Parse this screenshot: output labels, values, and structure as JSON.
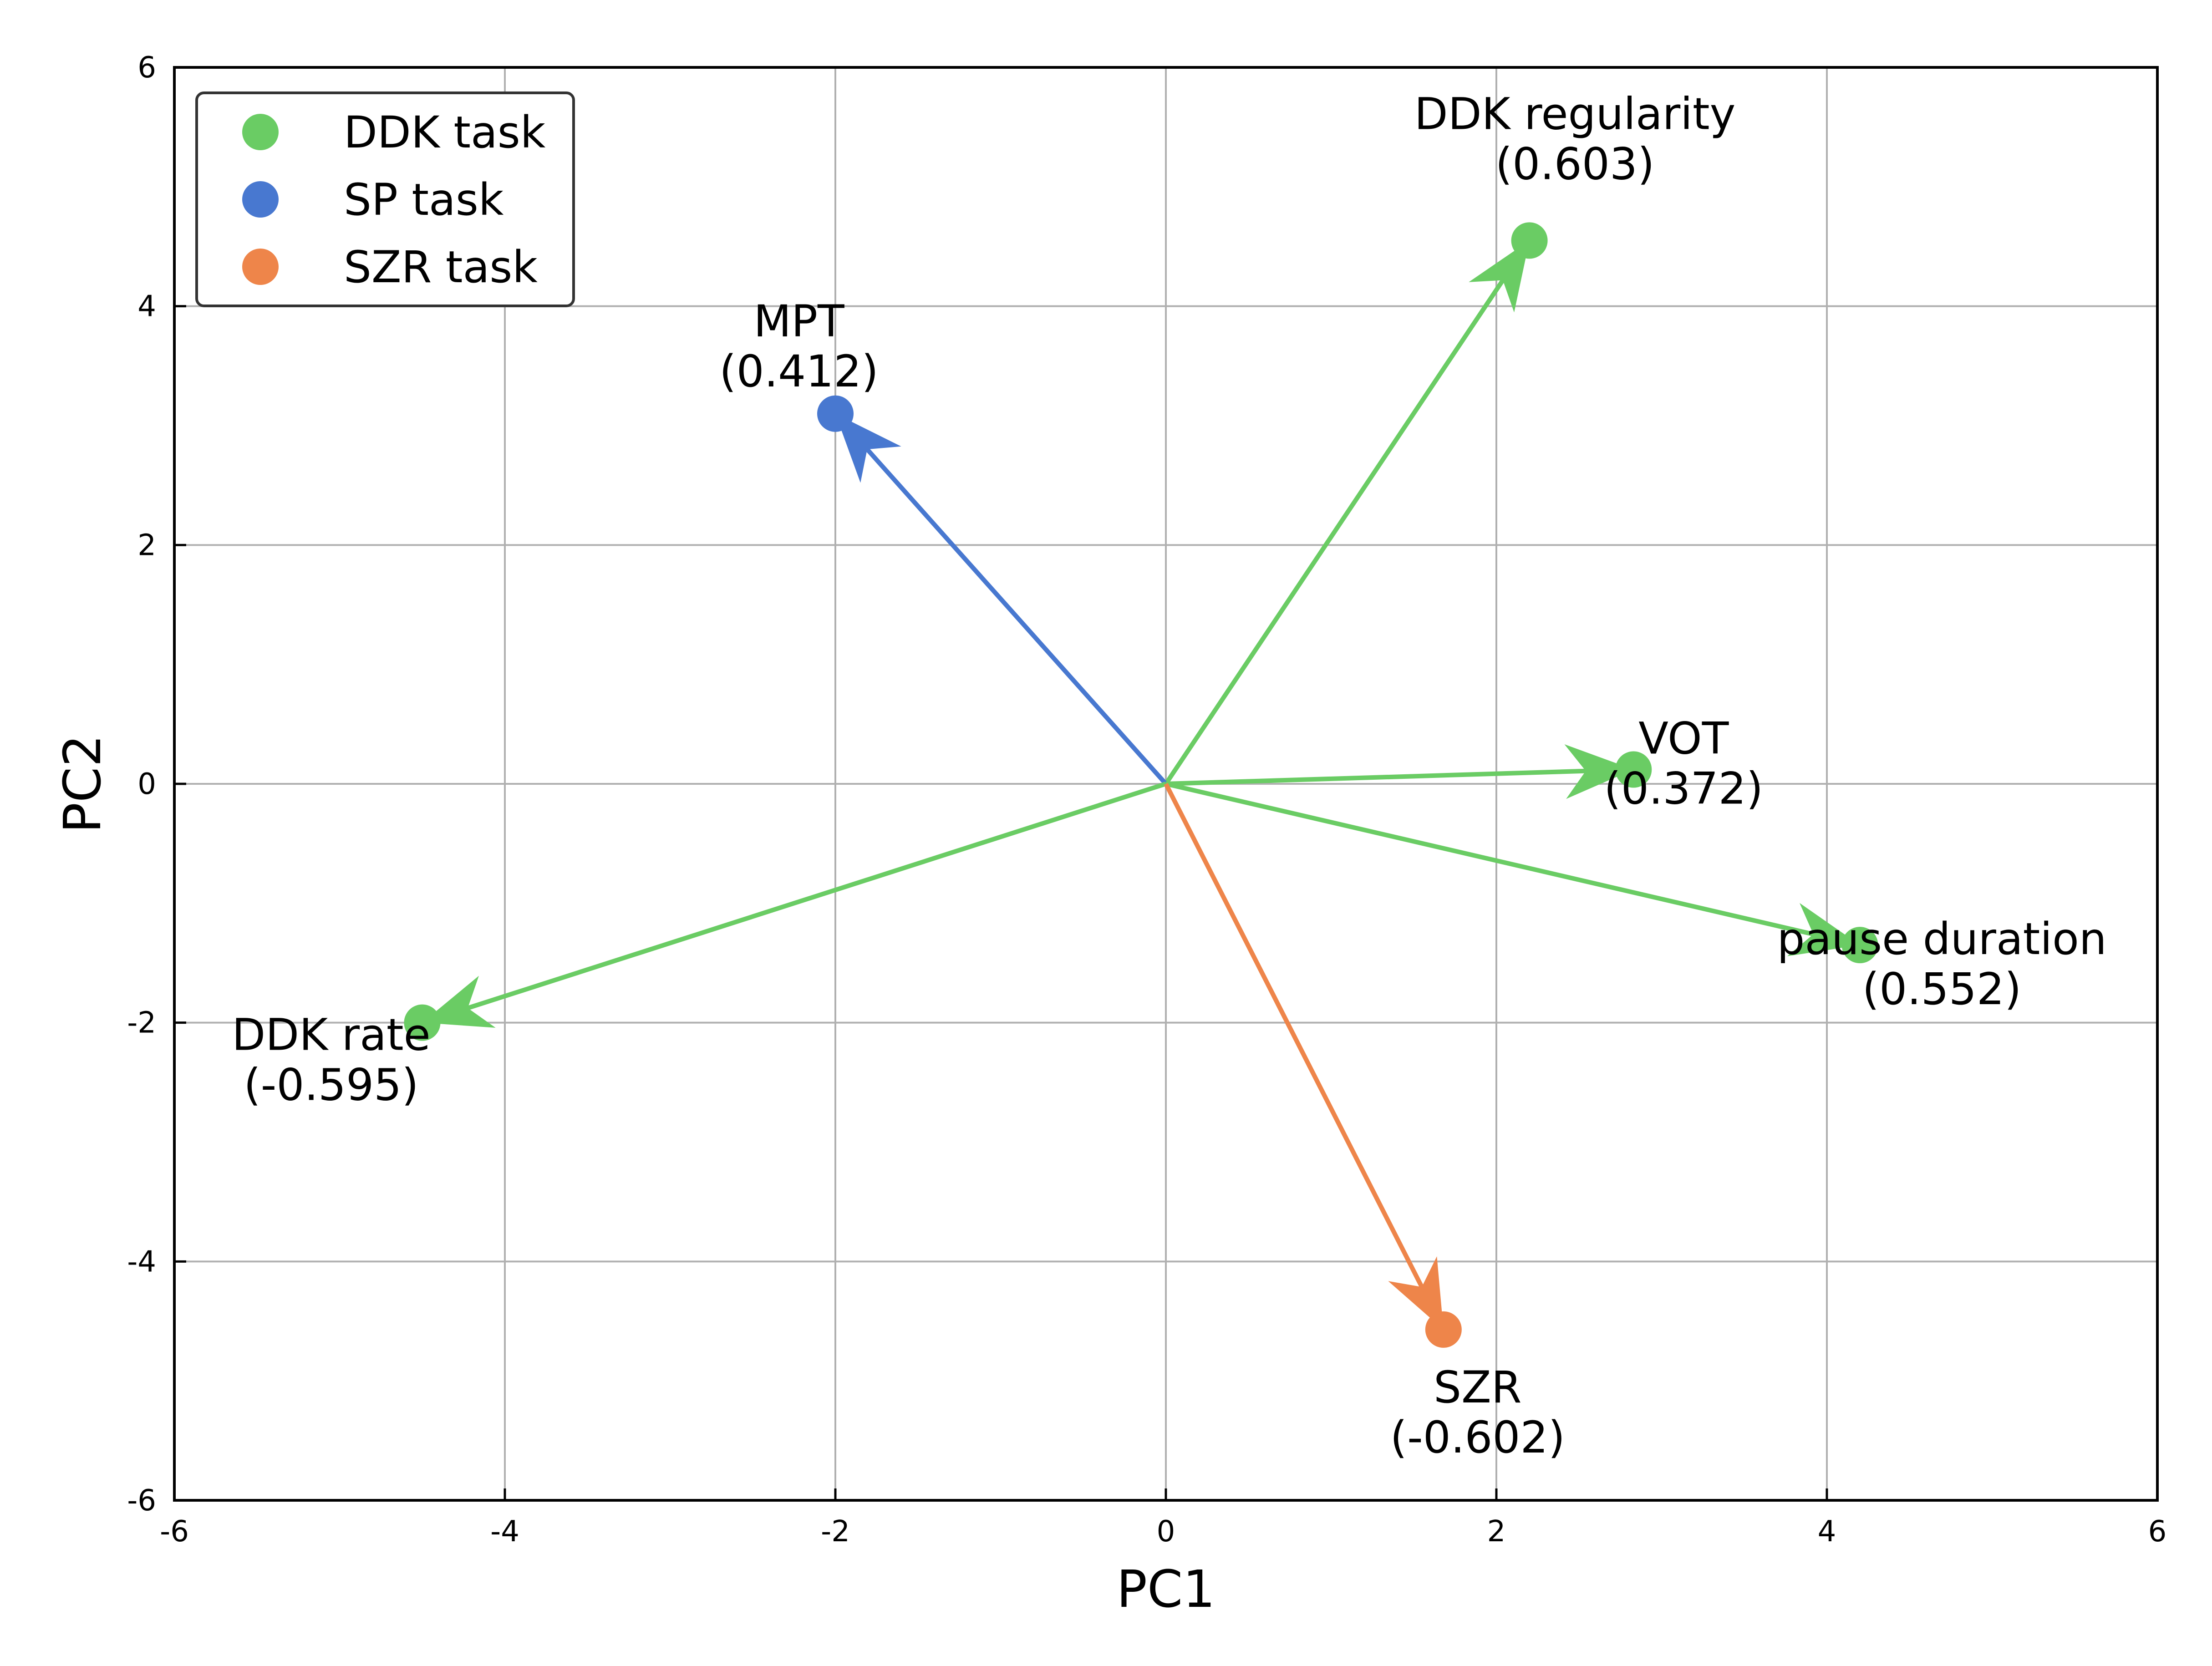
{
  "chart_data": {
    "type": "scatter",
    "xlabel": "PC1",
    "ylabel": "PC2",
    "xlim": [
      -6,
      6
    ],
    "ylim": [
      -6,
      6
    ],
    "x_ticks": [
      "-6",
      "-4",
      "-2",
      "0",
      "2",
      "4",
      "6"
    ],
    "y_ticks": [
      "-6",
      "-4",
      "-2",
      "0",
      "2",
      "4",
      "6"
    ],
    "grid": true,
    "legend_position": "top-left",
    "groups": [
      {
        "name": "DDK task",
        "color": "#6acc64"
      },
      {
        "name": "SP task",
        "color": "#4878d0"
      },
      {
        "name": "SZR task",
        "color": "#ee854a"
      }
    ],
    "vectors": [
      {
        "name": "DDK regularity",
        "value": "(0.603)",
        "x": 2.2,
        "y": 4.55,
        "group": 0
      },
      {
        "name": "MPT",
        "value": "(0.412)",
        "x": -2.0,
        "y": 3.1,
        "group": 1
      },
      {
        "name": "VOT",
        "value": "(0.372)",
        "x": 2.83,
        "y": 0.12,
        "group": 0
      },
      {
        "name": "pause duration",
        "value": "(0.552)",
        "x": 4.2,
        "y": -1.35,
        "group": 0
      },
      {
        "name": "DDK rate",
        "value": "(-0.595)",
        "x": -4.5,
        "y": -2.0,
        "group": 0
      },
      {
        "name": "SZR",
        "value": "(-0.602)",
        "x": 1.68,
        "y": -4.57,
        "group": 2
      }
    ]
  }
}
